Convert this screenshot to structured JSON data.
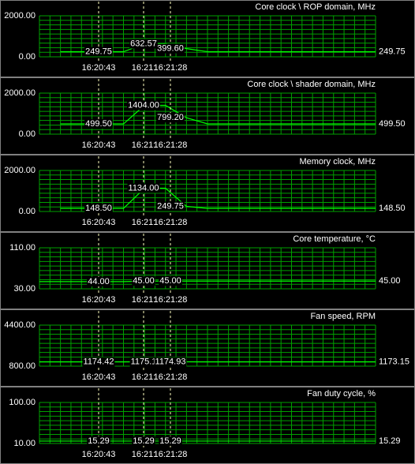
{
  "cursor_times": [
    "16:20:43",
    "16:21:",
    "16:21:28"
  ],
  "panels": [
    {
      "title": "Core clock \\ ROP domain, MHz",
      "y_max": {
        "value": 2000,
        "label": "2000.00"
      },
      "y_min": {
        "value": 0,
        "label": "0.00"
      },
      "trace": [
        null,
        249.75,
        249.75,
        249.75,
        249.75,
        632.57,
        632.57,
        399.6,
        249.75,
        249.75,
        249.75,
        249.75,
        249.75,
        249.75,
        249.75,
        249.75,
        249.75
      ],
      "markers": [
        {
          "value": 249.75,
          "label": "249.75"
        },
        {
          "value": 632.57,
          "label": "632.57"
        },
        {
          "value": 399.6,
          "label": "399.60"
        }
      ],
      "current": {
        "value": 249.75,
        "label": "249.75"
      }
    },
    {
      "title": "Core clock \\ shader domain, MHz",
      "y_max": {
        "value": 2000,
        "label": "2000.00"
      },
      "y_min": {
        "value": 0,
        "label": "0.00"
      },
      "trace": [
        null,
        499.5,
        499.5,
        499.5,
        499.5,
        1404,
        1404,
        799.2,
        499.5,
        499.5,
        499.5,
        499.5,
        499.5,
        499.5,
        499.5,
        499.5,
        499.5
      ],
      "markers": [
        {
          "value": 499.5,
          "label": "499.50"
        },
        {
          "value": 1404,
          "label": "1404.00"
        },
        {
          "value": 799.2,
          "label": "799.20"
        }
      ],
      "current": {
        "value": 499.5,
        "label": "499.50"
      }
    },
    {
      "title": "Memory clock, MHz",
      "y_max": {
        "value": 2000,
        "label": "2000.00"
      },
      "y_min": {
        "value": 0,
        "label": "0.00"
      },
      "trace": [
        null,
        148.5,
        148.5,
        148.5,
        148.5,
        1134,
        1134,
        249.75,
        148.5,
        148.5,
        148.5,
        148.5,
        148.5,
        148.5,
        148.5,
        148.5,
        148.5
      ],
      "markers": [
        {
          "value": 148.5,
          "label": "148.50"
        },
        {
          "value": 1134,
          "label": "1134.00"
        },
        {
          "value": 249.75,
          "label": "249.75"
        }
      ],
      "current": {
        "value": 148.5,
        "label": "148.50"
      }
    },
    {
      "title": "Core temperature, °C",
      "y_max": {
        "value": 110,
        "label": "110.00"
      },
      "y_min": {
        "value": 30,
        "label": "30.00"
      },
      "trace": [
        44,
        44,
        44,
        44,
        44,
        45,
        45,
        45,
        45,
        45,
        45,
        45,
        45,
        45,
        45,
        45,
        45
      ],
      "markers": [
        {
          "value": 44,
          "label": "44.00"
        },
        {
          "value": 45,
          "label": "45.00"
        },
        {
          "value": 45,
          "label": "45.00"
        }
      ],
      "current": {
        "value": 45,
        "label": "45.00"
      }
    },
    {
      "title": "Fan speed, RPM",
      "y_max": {
        "value": 4400,
        "label": "4400.00"
      },
      "y_min": {
        "value": 800,
        "label": "800.00"
      },
      "trace": [
        1174,
        1174,
        1174,
        1174,
        1174,
        1175,
        1175,
        1175,
        1174,
        1174,
        1174,
        1174,
        1174,
        1174,
        1174,
        1173,
        1173
      ],
      "markers": [
        {
          "value": 1174.42,
          "label": "1174.42"
        },
        {
          "value": 1175.1,
          "label": "1175.1"
        },
        {
          "value": 1174.93,
          "label": "1174.93"
        }
      ],
      "current": {
        "value": 1173.15,
        "label": "1173.15"
      }
    },
    {
      "title": "Fan duty cycle, %",
      "y_max": {
        "value": 100,
        "label": "100.00"
      },
      "y_min": {
        "value": 10,
        "label": "10.00"
      },
      "trace": [
        15.29,
        15.29,
        15.29,
        15.29,
        15.29,
        15.29,
        15.29,
        15.29,
        15.29,
        15.29,
        15.29,
        15.29,
        15.29,
        15.29,
        15.29,
        15.29,
        15.29
      ],
      "markers": [
        {
          "value": 15.29,
          "label": "15.29"
        },
        {
          "value": 15.29,
          "label": "15.29"
        },
        {
          "value": 15.29,
          "label": "15.29"
        }
      ],
      "current": {
        "value": 15.29,
        "label": "15.29"
      }
    }
  ]
}
